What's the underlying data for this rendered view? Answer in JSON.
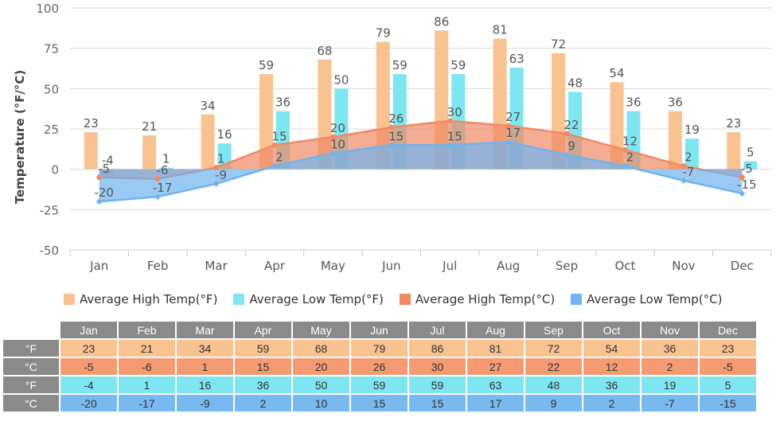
{
  "chart_data": {
    "type": "bar+area",
    "ylabel": "Temperature (°F/°C)",
    "ylim": [
      -50,
      100
    ],
    "yticks": [
      100,
      75,
      50,
      25,
      0,
      -25,
      -50
    ],
    "categories": [
      "Jan",
      "Feb",
      "Mar",
      "Apr",
      "May",
      "Jun",
      "Jul",
      "Aug",
      "Sep",
      "Oct",
      "Nov",
      "Dec"
    ],
    "series": [
      {
        "name": "Average High Temp(°F)",
        "type": "bar",
        "color": "#f8c291",
        "values": [
          23,
          21,
          34,
          59,
          68,
          79,
          86,
          81,
          72,
          54,
          36,
          23
        ]
      },
      {
        "name": "Average Low Temp(°F)",
        "type": "bar",
        "color": "#7ee6f0",
        "values": [
          -4,
          1,
          16,
          36,
          50,
          59,
          59,
          63,
          48,
          36,
          19,
          5
        ]
      },
      {
        "name": "Average High Temp(°C)",
        "type": "area",
        "color": "#f08a65",
        "values": [
          -5,
          -6,
          1,
          15,
          20,
          26,
          30,
          27,
          22,
          12,
          2,
          -5
        ]
      },
      {
        "name": "Average Low Temp(°C)",
        "type": "area",
        "color": "#6fb3f0",
        "values": [
          -20,
          -17,
          -9,
          2,
          10,
          15,
          15,
          17,
          9,
          2,
          -7,
          -15
        ]
      }
    ],
    "grid": true,
    "legend": "bottom"
  },
  "table": {
    "months": [
      "Jan",
      "Feb",
      "Mar",
      "Apr",
      "May",
      "Jun",
      "Jul",
      "Aug",
      "Sep",
      "Oct",
      "Nov",
      "Dec"
    ],
    "rows": [
      {
        "label": "°F",
        "values": [
          23,
          21,
          34,
          59,
          68,
          79,
          86,
          81,
          72,
          54,
          36,
          23
        ]
      },
      {
        "label": "°C",
        "values": [
          -5,
          -6,
          1,
          15,
          20,
          26,
          30,
          27,
          22,
          12,
          2,
          -5
        ]
      },
      {
        "label": "°F",
        "values": [
          -4,
          1,
          16,
          36,
          50,
          59,
          59,
          63,
          48,
          36,
          19,
          5
        ]
      },
      {
        "label": "°C",
        "values": [
          -20,
          -17,
          -9,
          2,
          10,
          15,
          15,
          17,
          9,
          2,
          -7,
          -15
        ]
      }
    ]
  }
}
